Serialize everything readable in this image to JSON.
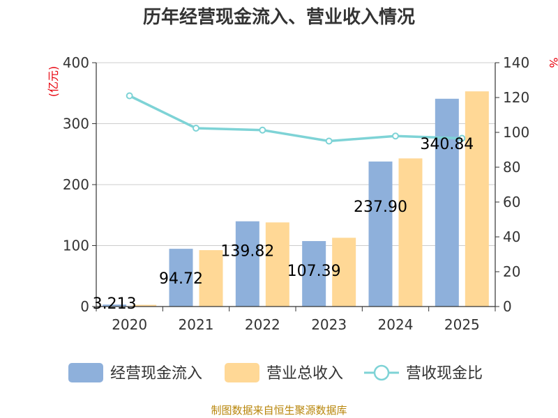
{
  "chart_data": {
    "type": "bar",
    "title": "历年经营现金流入、营业收入情况",
    "categories": [
      "2020",
      "2021",
      "2022",
      "2023",
      "2024",
      "2025"
    ],
    "y_left": {
      "unit": "(亿元)",
      "ticks": [
        "0",
        "100",
        "200",
        "300",
        "400"
      ],
      "range": [
        0,
        400
      ]
    },
    "y_right": {
      "unit": "%",
      "ticks": [
        "0",
        "20",
        "40",
        "60",
        "80",
        "100",
        "120",
        "140"
      ],
      "range": [
        0,
        140
      ]
    },
    "series": [
      {
        "name": "经营现金流入",
        "type": "bar",
        "axis": "left",
        "color": "#8eb0db",
        "values": [
          3.213,
          94.72,
          139.82,
          107.39,
          237.9,
          340.84
        ],
        "labels": [
          "3.213",
          "94.72",
          "139.82",
          "107.39",
          "237.90",
          "340.84"
        ]
      },
      {
        "name": "营业总收入",
        "type": "bar",
        "axis": "left",
        "color": "#ffd896",
        "values": [
          2.8,
          92.5,
          138.0,
          112.8,
          243.0,
          353.0
        ]
      },
      {
        "name": "营收现金比",
        "type": "line",
        "axis": "right",
        "color": "#7ed3d6",
        "values": [
          null,
          102.4,
          101.3,
          95.0,
          97.9,
          96.6
        ],
        "first_point": {
          "value": 121.0,
          "shown": "marker-only"
        }
      }
    ],
    "grid": true,
    "legend": "bottom"
  },
  "source": "制图数据来自恒生聚源数据库"
}
